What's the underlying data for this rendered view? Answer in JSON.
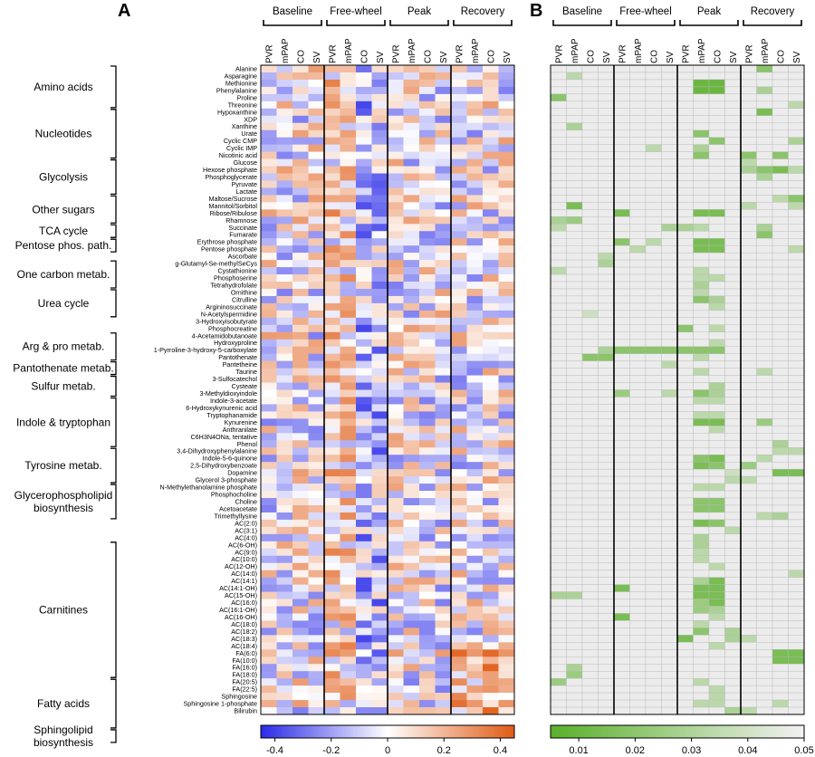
{
  "panels": [
    {
      "letter": "A",
      "type": "heatmap",
      "colorbar_ticks": [
        "-0.4",
        "-0.2",
        "0",
        "0.2",
        "0.4"
      ]
    },
    {
      "letter": "B",
      "type": "heatmap",
      "colorbar_ticks": [
        "0.01",
        "0.02",
        "0.03",
        "0.04",
        "0.05"
      ]
    }
  ],
  "phases": [
    "Baseline",
    "Free-wheel",
    "Peak",
    "Recovery"
  ],
  "measures": [
    "PVR",
    "mPAP",
    "CO",
    "SV"
  ],
  "groups": [
    {
      "label": "Amino acids",
      "lines": [
        "Amino acids"
      ],
      "start": 0,
      "end": 5
    },
    {
      "label": "Nucleotides",
      "lines": [
        "Nucleotides"
      ],
      "start": 6,
      "end": 12
    },
    {
      "label": "Glycolysis",
      "lines": [
        "Glycolysis"
      ],
      "start": 13,
      "end": 17
    },
    {
      "label": "Other sugars",
      "lines": [
        "Other sugars"
      ],
      "start": 18,
      "end": 21
    },
    {
      "label": "TCA cycle",
      "lines": [
        "TCA cycle"
      ],
      "start": 22,
      "end": 23
    },
    {
      "label": "Pentose phos. path.",
      "lines": [
        "Pentose phos. path."
      ],
      "start": 24,
      "end": 25
    },
    {
      "label": "One carbon metab.",
      "lines": [
        "One carbon metab."
      ],
      "start": 27,
      "end": 30
    },
    {
      "label": "Urea cycle",
      "lines": [
        "Urea cycle"
      ],
      "start": 31,
      "end": 34
    },
    {
      "label": "Arg & pro metab.",
      "lines": [
        "Arg & pro metab."
      ],
      "start": 37,
      "end": 40
    },
    {
      "label": "Pantothenate metab.",
      "lines": [
        "Pantothenate metab."
      ],
      "start": 41,
      "end": 42
    },
    {
      "label": "Sulfur metab.",
      "lines": [
        "Sulfur metab."
      ],
      "start": 43,
      "end": 45
    },
    {
      "label": "Indole & tryptophan",
      "lines": [
        "Indole & tryptophan"
      ],
      "start": 46,
      "end": 52
    },
    {
      "label": "Tyrosine metab.",
      "lines": [
        "Tyrosine metab."
      ],
      "start": 53,
      "end": 57
    },
    {
      "label": "Glycerophospholipid biosynthesis",
      "lines": [
        "Glycerophospholipid",
        "biosynthesis"
      ],
      "start": 58,
      "end": 62
    },
    {
      "label": "Carnitines",
      "lines": [
        "Carnitines"
      ],
      "start": 66,
      "end": 84
    },
    {
      "label": "Fatty acids",
      "lines": [
        "Fatty acids"
      ],
      "start": 85,
      "end": 91
    },
    {
      "label": "Sphingolipid biosynthesis",
      "lines": [
        "Sphingolipid",
        "biosynthesis"
      ],
      "start": 92,
      "end": 93
    }
  ],
  "chart_data": [
    {
      "type": "heatmap",
      "title": "",
      "panel": "A",
      "column_groups": [
        "Baseline",
        "Free-wheel",
        "Peak",
        "Recovery"
      ],
      "columns": [
        "PVR",
        "mPAP",
        "CO",
        "SV"
      ],
      "rows": [
        "Alanine",
        "Asparagine",
        "Methionine",
        "Phenylalanine",
        "Proline",
        "Threonine",
        "Hypoxanthine",
        "XDP",
        "Xanthine",
        "Urate",
        "Cyclic CMP",
        "Cyclic IMP",
        "Nicotinic acid",
        "Glucose",
        "Hexose phosphate",
        "Phosphoglycerate",
        "Pyruvate",
        "Lactate",
        "Maltose/Sucrose",
        "Mannitol/Sorbitol",
        "Ribose/Ribulose",
        "Rhamnose",
        "Succinate",
        "Fumarate",
        "Erythrose phosphate",
        "Pentose phosphate",
        "Ascorbate",
        "g-Glutamyl-Se-methylSeCys",
        "Cystathionine",
        "Phosphoserine",
        "Tetrahydrofolate",
        "Ornithine",
        "Citrulline",
        "Argininosuccinate",
        "N-Acetylspermidine",
        "3-Hydroxyisobutyrate",
        "Phosphocreatine",
        "4-Acetamidobutanoate",
        "Hydroxyproline",
        "1-Pyrroline-3-hydroxy-5-carboxylate",
        "Pantothenate",
        "Pantetheine",
        "Taurine",
        "3-Sulfocatechol",
        "Cysteate",
        "3-Methyldioxyindole",
        "Indole-3-acetate",
        "6-Hydroxykynurenic acid",
        "Tryptophanamide",
        "Kynurenine",
        "Anthranilate",
        "C6H3N4ONa, tentative",
        "Phenol",
        "3,4-Dihydroxyphenylalanine",
        "Indole-5-6-quinone",
        "2,5-Dihydroxybenzoate",
        "Dopamine",
        "Glycerol 3-phosphate",
        "N-Methylethanolamine phosphate",
        "Phosphocholine",
        "Choline",
        "Acetoacetate",
        "Trimethyllysine",
        "AC(2:0)",
        "AC(3:1)",
        "AC(4:0)",
        "AC(6-OH)",
        "AC(9:0)",
        "AC(10:0)",
        "AC(12-OH)",
        "AC(14:0)",
        "AC(14:1)",
        "AC(14:1-OH)",
        "AC(15-OH)",
        "AC(16:0)",
        "AC(16:1-OH)",
        "AC(16-OH)",
        "AC(18:0)",
        "AC(18:2)",
        "AC(18:3)",
        "AC(18:4)",
        "FA(6:0)",
        "FA(10:0)",
        "FA(16:0)",
        "FA(18:0)",
        "FA(20:5)",
        "FA(22:5)",
        "Sphingosine",
        "Sphingosine 1-phosphate",
        "Bilirubin"
      ],
      "value_range": [
        -0.45,
        0.45
      ],
      "colorbar": {
        "ticks": [
          -0.4,
          -0.2,
          0,
          0.2,
          0.4
        ],
        "low_color": "#2a2ae8",
        "mid_color": "#ffffff",
        "high_color": "#e05a14"
      },
      "values": []
    },
    {
      "type": "heatmap",
      "title": "",
      "panel": "B",
      "column_groups": [
        "Baseline",
        "Free-wheel",
        "Peak",
        "Recovery"
      ],
      "columns": [
        "PVR",
        "mPAP",
        "CO",
        "SV"
      ],
      "value_range": [
        0.005,
        0.05
      ],
      "colorbar": {
        "ticks": [
          0.01,
          0.02,
          0.03,
          0.04,
          0.05
        ],
        "low_color": "#5ab02a",
        "high_color": "#ececec"
      },
      "significant": [
        [
          0,
          13,
          0.02
        ],
        [
          1,
          1,
          0.035
        ],
        [
          2,
          9,
          0.01
        ],
        [
          2,
          10,
          0.01
        ],
        [
          3,
          9,
          0.01
        ],
        [
          3,
          10,
          0.01
        ],
        [
          3,
          10,
          0.01
        ],
        [
          4,
          0,
          0.02
        ],
        [
          3,
          13,
          0.03
        ],
        [
          6,
          13,
          0.015
        ],
        [
          5,
          15,
          0.035
        ],
        [
          8,
          1,
          0.03
        ],
        [
          9,
          9,
          0.02
        ],
        [
          10,
          10,
          0.02
        ],
        [
          11,
          9,
          0.03
        ],
        [
          12,
          9,
          0.02
        ],
        [
          10,
          15,
          0.03
        ],
        [
          11,
          6,
          0.035
        ],
        [
          12,
          12,
          0.02
        ],
        [
          12,
          14,
          0.02
        ],
        [
          13,
          12,
          0.035
        ],
        [
          14,
          12,
          0.03
        ],
        [
          14,
          13,
          0.02
        ],
        [
          14,
          14,
          0.015
        ],
        [
          14,
          15,
          0.035
        ],
        [
          15,
          13,
          0.03
        ],
        [
          18,
          14,
          0.035
        ],
        [
          18,
          15,
          0.02
        ],
        [
          19,
          1,
          0.015
        ],
        [
          19,
          15,
          0.035
        ],
        [
          19,
          12,
          0.035
        ],
        [
          20,
          4,
          0.015
        ],
        [
          20,
          9,
          0.015
        ],
        [
          20,
          10,
          0.015
        ],
        [
          21,
          0,
          0.03
        ],
        [
          21,
          1,
          0.025
        ],
        [
          22,
          0,
          0.035
        ],
        [
          22,
          7,
          0.03
        ],
        [
          22,
          8,
          0.03
        ],
        [
          22,
          9,
          0.035
        ],
        [
          22,
          13,
          0.03
        ],
        [
          23,
          13,
          0.02
        ],
        [
          24,
          4,
          0.02
        ],
        [
          24,
          6,
          0.035
        ],
        [
          24,
          9,
          0.015
        ],
        [
          24,
          10,
          0.015
        ],
        [
          25,
          5,
          0.035
        ],
        [
          25,
          9,
          0.015
        ],
        [
          25,
          10,
          0.015
        ],
        [
          25,
          15,
          0.035
        ],
        [
          26,
          3,
          0.035
        ],
        [
          27,
          3,
          0.03
        ],
        [
          28,
          0,
          0.035
        ],
        [
          28,
          9,
          0.035
        ],
        [
          29,
          9,
          0.035
        ],
        [
          29,
          10,
          0.035
        ],
        [
          30,
          9,
          0.03
        ],
        [
          31,
          9,
          0.035
        ],
        [
          32,
          9,
          0.02
        ],
        [
          32,
          10,
          0.03
        ],
        [
          33,
          10,
          0.035
        ],
        [
          34,
          2,
          0.04
        ],
        [
          36,
          8,
          0.02
        ],
        [
          36,
          10,
          0.035
        ],
        [
          38,
          10,
          0.035
        ],
        [
          39,
          3,
          0.03
        ],
        [
          39,
          4,
          0.02
        ],
        [
          39,
          5,
          0.02
        ],
        [
          39,
          6,
          0.02
        ],
        [
          39,
          7,
          0.02
        ],
        [
          39,
          8,
          0.02
        ],
        [
          39,
          9,
          0.02
        ],
        [
          39,
          10,
          0.02
        ],
        [
          40,
          2,
          0.02
        ],
        [
          40,
          3,
          0.02
        ],
        [
          40,
          9,
          0.035
        ],
        [
          41,
          7,
          0.035
        ],
        [
          42,
          9,
          0.035
        ],
        [
          42,
          13,
          0.035
        ],
        [
          44,
          10,
          0.03
        ],
        [
          45,
          4,
          0.025
        ],
        [
          45,
          7,
          0.035
        ],
        [
          45,
          9,
          0.02
        ],
        [
          45,
          10,
          0.03
        ],
        [
          46,
          9,
          0.035
        ],
        [
          46,
          10,
          0.035
        ],
        [
          48,
          9,
          0.035
        ],
        [
          48,
          10,
          0.035
        ],
        [
          49,
          9,
          0.015
        ],
        [
          49,
          10,
          0.015
        ],
        [
          49,
          13,
          0.025
        ],
        [
          50,
          10,
          0.035
        ],
        [
          52,
          14,
          0.03
        ],
        [
          53,
          14,
          0.035
        ],
        [
          53,
          15,
          0.035
        ],
        [
          54,
          9,
          0.02
        ],
        [
          54,
          10,
          0.015
        ],
        [
          54,
          13,
          0.035
        ],
        [
          55,
          9,
          0.015
        ],
        [
          55,
          10,
          0.02
        ],
        [
          55,
          12,
          0.025
        ],
        [
          56,
          11,
          0.04
        ],
        [
          56,
          14,
          0.015
        ],
        [
          56,
          15,
          0.015
        ],
        [
          56,
          16,
          0.015
        ],
        [
          57,
          11,
          0.035
        ],
        [
          57,
          12,
          0.035
        ],
        [
          58,
          9,
          0.035
        ],
        [
          58,
          10,
          0.035
        ],
        [
          60,
          9,
          0.02
        ],
        [
          60,
          10,
          0.02
        ],
        [
          61,
          9,
          0.02
        ],
        [
          61,
          10,
          0.02
        ],
        [
          62,
          14,
          0.03
        ],
        [
          62,
          13,
          0.035
        ],
        [
          63,
          9,
          0.015
        ],
        [
          63,
          10,
          0.02
        ],
        [
          64,
          11,
          0.035
        ],
        [
          65,
          9,
          0.03
        ],
        [
          66,
          9,
          0.03
        ],
        [
          67,
          9,
          0.035
        ],
        [
          68,
          9,
          0.035
        ],
        [
          69,
          10,
          0.035
        ],
        [
          70,
          15,
          0.035
        ],
        [
          71,
          9,
          0.03
        ],
        [
          71,
          10,
          0.015
        ],
        [
          72,
          4,
          0.015
        ],
        [
          72,
          9,
          0.015
        ],
        [
          72,
          10,
          0.015
        ],
        [
          73,
          0,
          0.03
        ],
        [
          73,
          1,
          0.03
        ],
        [
          73,
          9,
          0.015
        ],
        [
          73,
          10,
          0.015
        ],
        [
          74,
          9,
          0.025
        ],
        [
          74,
          10,
          0.015
        ],
        [
          75,
          9,
          0.025
        ],
        [
          75,
          10,
          0.03
        ],
        [
          76,
          4,
          0.015
        ],
        [
          76,
          10,
          0.035
        ],
        [
          77,
          9,
          0.035
        ],
        [
          78,
          9,
          0.02
        ],
        [
          78,
          11,
          0.03
        ],
        [
          79,
          8,
          0.015
        ],
        [
          79,
          11,
          0.03
        ],
        [
          79,
          12,
          0.035
        ],
        [
          80,
          10,
          0.035
        ],
        [
          81,
          14,
          0.015
        ],
        [
          81,
          15,
          0.015
        ],
        [
          82,
          14,
          0.015
        ],
        [
          82,
          15,
          0.015
        ],
        [
          83,
          1,
          0.03
        ],
        [
          84,
          1,
          0.025
        ],
        [
          85,
          0,
          0.025
        ],
        [
          85,
          9,
          0.035
        ],
        [
          86,
          10,
          0.035
        ],
        [
          87,
          10,
          0.035
        ],
        [
          88,
          9,
          0.035
        ],
        [
          88,
          10,
          0.035
        ],
        [
          88,
          14,
          0.035
        ],
        [
          89,
          11,
          0.03
        ],
        [
          89,
          12,
          0.035
        ],
        [
          90,
          12,
          0.035
        ],
        [
          91,
          10,
          0.02
        ]
      ]
    }
  ]
}
